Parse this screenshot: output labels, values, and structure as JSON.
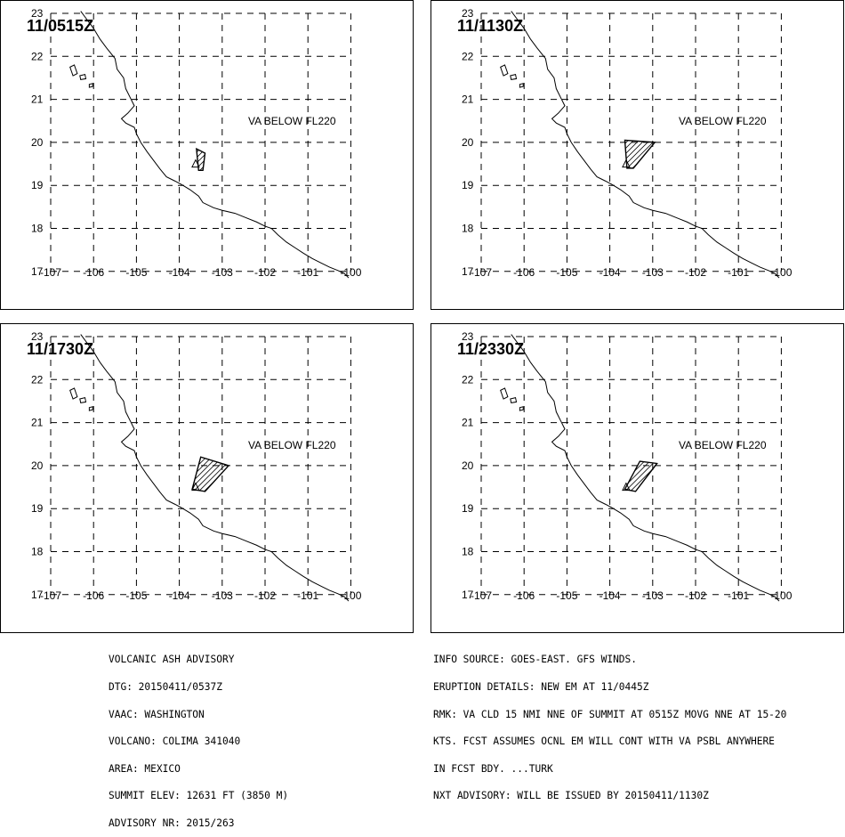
{
  "panels": [
    {
      "time": "11/0515Z",
      "note": "VA BELOW FL220",
      "polygon_lonlat": [
        [
          -103.6,
          19.85
        ],
        [
          -103.4,
          19.75
        ],
        [
          -103.45,
          19.35
        ],
        [
          -103.55,
          19.35
        ]
      ]
    },
    {
      "time": "11/1130Z",
      "note": "VA BELOW FL220",
      "polygon_lonlat": [
        [
          -103.65,
          20.05
        ],
        [
          -102.95,
          20.0
        ],
        [
          -103.45,
          19.4
        ],
        [
          -103.6,
          19.4
        ]
      ]
    },
    {
      "time": "11/1730Z",
      "note": "VA BELOW FL220",
      "polygon_lonlat": [
        [
          -103.5,
          20.2
        ],
        [
          -102.85,
          20.0
        ],
        [
          -103.4,
          19.4
        ],
        [
          -103.7,
          19.45
        ]
      ]
    },
    {
      "time": "11/2330Z",
      "note": "VA BELOW FL220",
      "polygon_lonlat": [
        [
          -103.3,
          20.1
        ],
        [
          -102.9,
          20.05
        ],
        [
          -103.4,
          19.4
        ],
        [
          -103.65,
          19.45
        ]
      ]
    }
  ],
  "map": {
    "lon_ticks": [
      "-107",
      "-106",
      "-105",
      "-104",
      "-103",
      "-102",
      "-101",
      "-100"
    ],
    "lat_ticks": [
      "23",
      "22",
      "21",
      "20",
      "19",
      "18",
      "17"
    ]
  },
  "advisory_left": {
    "lines": [
      "VOLCANIC ASH ADVISORY",
      "DTG: 20150411/0537Z",
      "VAAC: WASHINGTON",
      "VOLCANO: COLIMA 341040",
      "AREA: MEXICO",
      "SUMMIT ELEV: 12631 FT (3850 M)",
      "ADVISORY NR: 2015/263"
    ]
  },
  "advisory_right": {
    "lines": [
      "INFO SOURCE: GOES-EAST. GFS WINDS.",
      "ERUPTION DETAILS: NEW EM AT 11/0445Z",
      "RMK: VA CLD 15 NMI NNE OF SUMMIT AT 0515Z MOVG NNE AT 15-20",
      "KTS. FCST ASSUMES OCNL EM WILL CONT WITH VA PSBL ANYWHERE",
      "IN FCST BDY. ...TURK",
      "NXT ADVISORY: WILL BE ISSUED BY 20150411/1130Z"
    ]
  }
}
